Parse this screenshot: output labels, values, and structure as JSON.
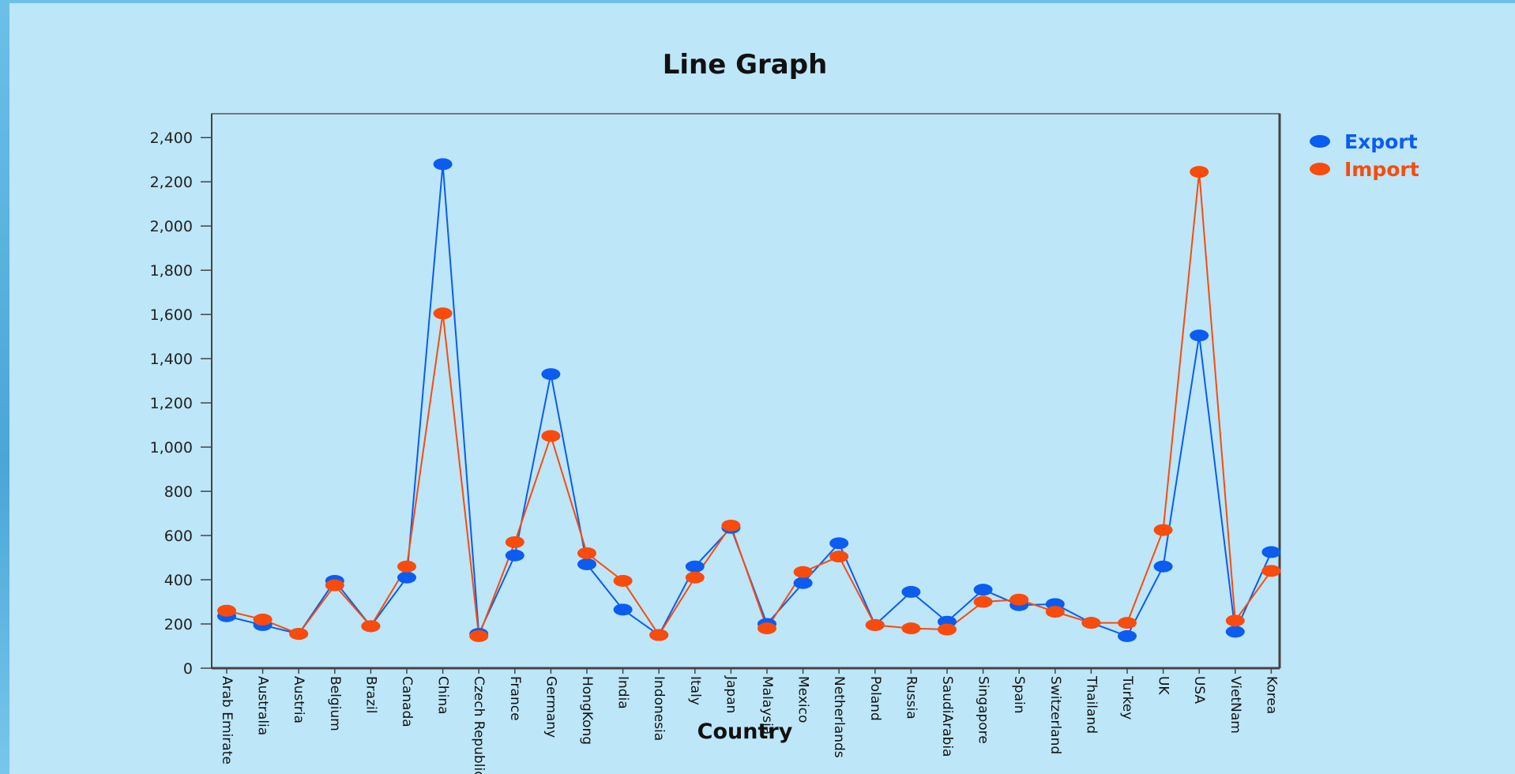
{
  "colors": {
    "background": "#bde6f8",
    "export": "#0b5cf0",
    "import": "#f94b0c",
    "axis": "#555555"
  },
  "chart_data": {
    "type": "line",
    "title": "Line Graph",
    "xlabel": "Country",
    "ylabel": "",
    "ylim": [
      0,
      2500
    ],
    "yticks": [
      0,
      200,
      400,
      600,
      800,
      1000,
      1200,
      1400,
      1600,
      1800,
      2000,
      2200,
      2400
    ],
    "yticklabels": [
      "0",
      "200",
      "400",
      "600",
      "800",
      "1,000",
      "1,200",
      "1,400",
      "1,600",
      "1,800",
      "2,000",
      "2,200",
      "2,400"
    ],
    "grid": false,
    "legend_position": "top-right",
    "categories": [
      "Arab Emirate",
      "Australia",
      "Austria",
      "Belgium",
      "Brazil",
      "Canada",
      "China",
      "Czech Republic",
      "France",
      "Germany",
      "HongKong",
      "India",
      "Indonesia",
      "Italy",
      "Japan",
      "Malaysia",
      "Mexico",
      "Netherlands",
      "Poland",
      "Russia",
      "SaudiArabia",
      "Singapore",
      "Spain",
      "Switzerland",
      "Thailand",
      "Turkey",
      "UK",
      "USA",
      "VietNam",
      "Korea"
    ],
    "series": [
      {
        "name": "Export",
        "color": "#0b5cf0",
        "values": [
          235,
          195,
          155,
          395,
          190,
          410,
          2280,
          155,
          510,
          1330,
          470,
          265,
          150,
          460,
          635,
          200,
          385,
          565,
          195,
          345,
          210,
          355,
          285,
          290,
          205,
          145,
          460,
          1505,
          165,
          525
        ]
      },
      {
        "name": "Import",
        "color": "#f94b0c",
        "values": [
          260,
          220,
          155,
          375,
          190,
          460,
          1605,
          145,
          570,
          1050,
          520,
          395,
          150,
          410,
          645,
          180,
          435,
          505,
          195,
          180,
          175,
          300,
          310,
          255,
          205,
          205,
          625,
          2245,
          215,
          440
        ]
      }
    ]
  }
}
